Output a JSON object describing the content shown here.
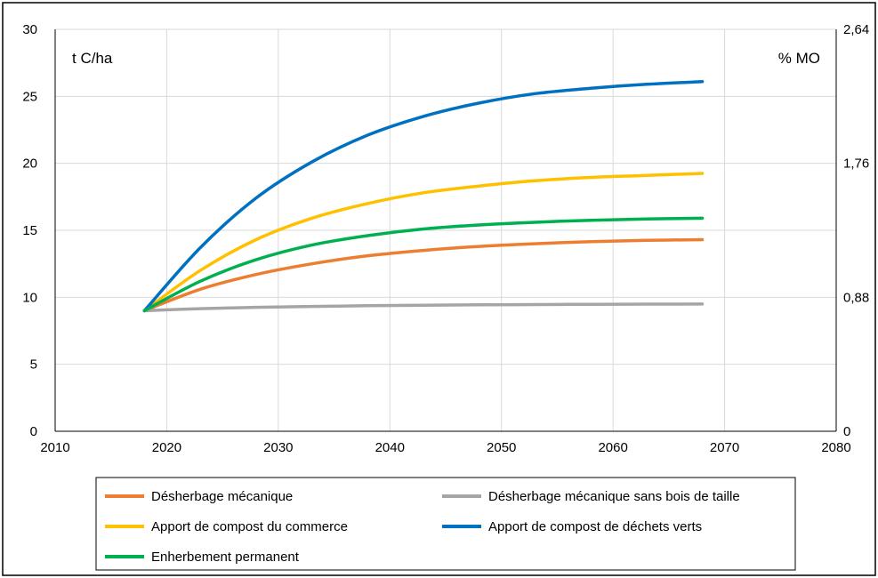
{
  "chart_data": {
    "type": "line",
    "title": "",
    "xlabel": "",
    "ylabel": "",
    "y_unit_left": "t C/ha",
    "y_unit_right": "% MO",
    "xlim": [
      2010,
      2080
    ],
    "ylim": [
      0,
      30
    ],
    "x_ticks": [
      "2010",
      "2020",
      "2030",
      "2040",
      "2050",
      "2060",
      "2070",
      "2080"
    ],
    "y_ticks_left": [
      "0",
      "5",
      "10",
      "15",
      "20",
      "25",
      "30"
    ],
    "y_ticks_right": [
      "0",
      "0,88",
      "1,76",
      "2,64"
    ],
    "grid": true,
    "legend_position": "bottom",
    "x": [
      2018,
      2023,
      2028,
      2033,
      2038,
      2043,
      2048,
      2053,
      2058,
      2063,
      2068
    ],
    "series": [
      {
        "name": "Désherbage mécanique",
        "color": "#ED7D31",
        "values": [
          9.0,
          10.6,
          11.7,
          12.5,
          13.1,
          13.5,
          13.8,
          14.0,
          14.15,
          14.25,
          14.3
        ]
      },
      {
        "name": "Désherbage mécanique sans bois de taille",
        "color": "#A5A5A5",
        "values": [
          9.0,
          9.15,
          9.25,
          9.32,
          9.37,
          9.41,
          9.44,
          9.46,
          9.48,
          9.49,
          9.5
        ]
      },
      {
        "name": "Apport de compost du commerce",
        "color": "#FFC000",
        "values": [
          9.0,
          12.0,
          14.3,
          15.9,
          17.0,
          17.8,
          18.3,
          18.7,
          18.95,
          19.1,
          19.25
        ]
      },
      {
        "name": "Apport de compost de déchets verts",
        "color": "#0070C0",
        "values": [
          9.0,
          13.7,
          17.4,
          20.1,
          22.1,
          23.5,
          24.5,
          25.2,
          25.6,
          25.9,
          26.1
        ]
      },
      {
        "name": "Enherbement permanent",
        "color": "#00B050",
        "values": [
          9.0,
          11.2,
          12.8,
          13.9,
          14.6,
          15.1,
          15.4,
          15.6,
          15.75,
          15.85,
          15.9
        ]
      }
    ]
  }
}
